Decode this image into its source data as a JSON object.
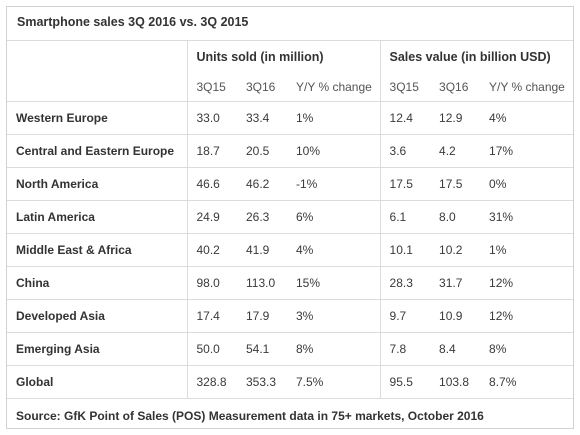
{
  "title": "Smartphone sales 3Q 2016 vs. 3Q 2015",
  "groups": {
    "units": "Units sold (in million)",
    "sales": "Sales value (in billion USD)"
  },
  "subheaders": [
    "3Q15",
    "3Q16",
    "Y/Y % change",
    "3Q15",
    "3Q16",
    "Y/Y % change"
  ],
  "rows": [
    {
      "region": "Western Europe",
      "values": [
        "33.0",
        "33.4",
        "1%",
        "12.4",
        "12.9",
        "4%"
      ]
    },
    {
      "region": "Central and Eastern Europe",
      "values": [
        "18.7",
        "20.5",
        "10%",
        "3.6",
        "4.2",
        "17%"
      ]
    },
    {
      "region": "North America",
      "values": [
        "46.6",
        "46.2",
        "-1%",
        "17.5",
        "17.5",
        "0%"
      ]
    },
    {
      "region": "Latin America",
      "values": [
        "24.9",
        "26.3",
        "6%",
        "6.1",
        "8.0",
        "31%"
      ]
    },
    {
      "region": "Middle East & Africa",
      "values": [
        "40.2",
        "41.9",
        "4%",
        "10.1",
        "10.2",
        "1%"
      ]
    },
    {
      "region": "China",
      "values": [
        "98.0",
        "113.0",
        "15%",
        "28.3",
        "31.7",
        "12%"
      ]
    },
    {
      "region": "Developed Asia",
      "values": [
        "17.4",
        "17.9",
        "3%",
        "9.7",
        "10.9",
        "12%"
      ]
    },
    {
      "region": "Emerging Asia",
      "values": [
        "50.0",
        "54.1",
        "8%",
        "7.8",
        "8.4",
        "8%"
      ]
    },
    {
      "region": "Global",
      "values": [
        "328.8",
        "353.3",
        "7.5%",
        "95.5",
        "103.8",
        "8.7%"
      ]
    }
  ],
  "source": "Source: GfK Point of Sales (POS) Measurement data in 75+ markets, October 2016"
}
